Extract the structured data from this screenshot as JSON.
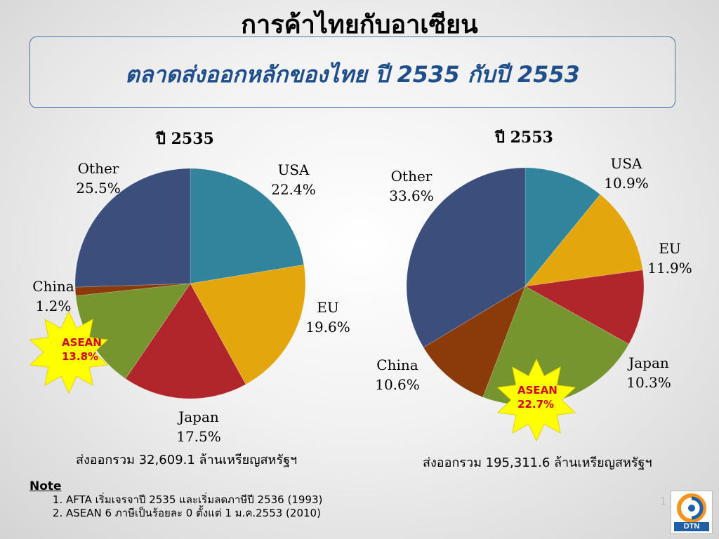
{
  "header": {
    "title": "การค้าไทยกับอาเซียน",
    "subtitle": "ตลาดส่งออกหลักของไทย ปี 2535 กับปี 2553"
  },
  "chart_data": [
    {
      "type": "pie",
      "title": "ปี 2535",
      "labels": [
        "USA",
        "EU",
        "Japan",
        "ASEAN",
        "China",
        "Other"
      ],
      "values": [
        22.4,
        19.6,
        17.5,
        13.8,
        1.2,
        25.5
      ],
      "value_labels": [
        "22.4%",
        "19.6%",
        "17.5%",
        "13.8%",
        "1.2%",
        "25.5%"
      ],
      "colors": [
        "#31849b",
        "#e3a60d",
        "#b1262a",
        "#76952f",
        "#8b3a0a",
        "#3b4f7d"
      ],
      "total_text": "ส่งออกรวม 32,609.1 ล้านเหรียญสหรัฐฯ"
    },
    {
      "type": "pie",
      "title": "ปี 2553",
      "labels": [
        "USA",
        "EU",
        "Japan",
        "ASEAN",
        "China",
        "Other"
      ],
      "values": [
        10.9,
        11.9,
        10.3,
        22.7,
        10.6,
        33.6
      ],
      "value_labels": [
        "10.9%",
        "11.9%",
        "10.3%",
        "22.7%",
        "10.6%",
        "33.6%"
      ],
      "colors": [
        "#31849b",
        "#e3a60d",
        "#b1262a",
        "#76952f",
        "#8b3a0a",
        "#3b4f7d"
      ],
      "total_text": "ส่งออกรวม 195,311.6 ล้านเหรียญสหรัฐฯ"
    }
  ],
  "note": {
    "title": "Note",
    "items": [
      "AFTA เริ่มเจรจาปี 2535 และเริ่มลดภาษีปี 2536 (1993)",
      "ASEAN 6 ภาษีเป็นร้อยละ 0 ตั้งแต่ 1 ม.ค.2553 (2010)"
    ]
  },
  "page_number": "1",
  "logo": {
    "text": "DTN"
  }
}
